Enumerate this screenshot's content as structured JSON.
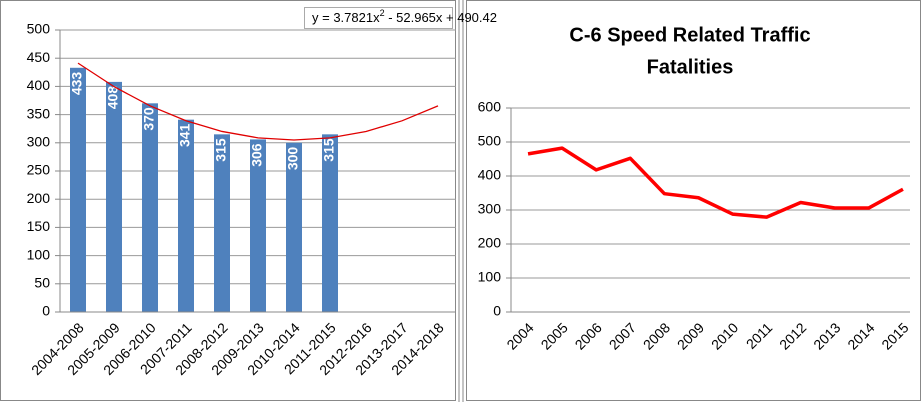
{
  "chart_data": [
    {
      "type": "bar",
      "categories": [
        "2004-2008",
        "2005-2009",
        "2006-2010",
        "2007-2011",
        "2008-2012",
        "2009-2013",
        "2010-2014",
        "2011-2015",
        "2012-2016",
        "2013-2017",
        "2014-2018"
      ],
      "values": [
        433,
        408,
        370,
        341,
        315,
        306,
        300,
        315,
        null,
        null,
        null
      ],
      "color": "#4f81bd",
      "annotation": [
        "y = 3.7821x",
        "2",
        " - 52.965x + 490.42"
      ],
      "trendline": {
        "color": "#e00000",
        "values": [
          441.24,
          399.62,
          365.56,
          339.07,
          320.14,
          308.79,
          304.98,
          308.75,
          320.08,
          338.98,
          365.43
        ]
      },
      "ylim": [
        0,
        500
      ],
      "yticks": [
        0,
        50,
        100,
        150,
        200,
        250,
        300,
        350,
        400,
        450,
        500
      ],
      "grid": true
    },
    {
      "type": "line",
      "title": [
        "C-6 Speed Related Traffic",
        "Fatalities"
      ],
      "categories": [
        "2004",
        "2005",
        "2006",
        "2007",
        "2008",
        "2009",
        "2010",
        "2011",
        "2012",
        "2013",
        "2014",
        "2015"
      ],
      "values": [
        465,
        482,
        418,
        452,
        348,
        336,
        288,
        279,
        322,
        306,
        306,
        361
      ],
      "color": "#ff0000",
      "ylim": [
        0,
        600
      ],
      "yticks": [
        0,
        100,
        200,
        300,
        400,
        500,
        600
      ],
      "grid": true
    }
  ]
}
